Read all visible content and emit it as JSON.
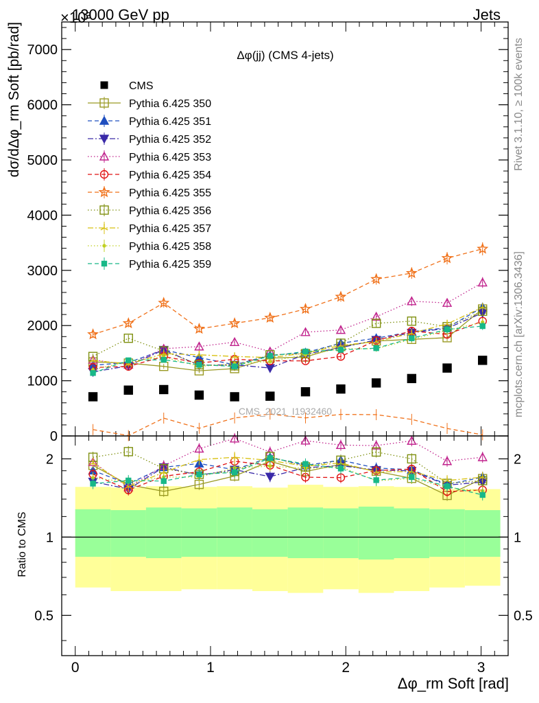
{
  "header": {
    "left": "13000 GeV pp",
    "right": "Jets",
    "exponent": "×10³"
  },
  "side_labels": {
    "rivet": "Rivet 3.1.10, ≥ 100k events",
    "mcplots": "mcplots.cern.ch [arXiv:1306.3436]"
  },
  "chart_data": [
    {
      "type": "scatter",
      "title": "Δφ(jj) (CMS 4-jets)",
      "watermark": "CMS_2021_I1932460",
      "ylabel": "dσ/dΔφ_rm Soft [pb/rad]",
      "xlabel": "Δφ_rm Soft [rad]",
      "xlim": [
        -0.1,
        3.2
      ],
      "ylim": [
        0,
        7500
      ],
      "y_ticks": [
        0,
        1000,
        2000,
        3000,
        4000,
        5000,
        6000,
        7000
      ],
      "x": [
        0.131,
        0.393,
        0.654,
        0.916,
        1.178,
        1.44,
        1.702,
        1.963,
        2.225,
        2.487,
        2.749,
        3.011
      ],
      "legend_position": "top-left",
      "series": [
        {
          "name": "CMS",
          "color": "#000000",
          "marker": "square-filled",
          "line": "none",
          "values": [
            710,
            830,
            840,
            740,
            710,
            720,
            800,
            850,
            960,
            1040,
            1230,
            1370
          ]
        },
        {
          "name": "Pythia 6.425 350",
          "color": "#999922",
          "marker": "square-open",
          "line": "solid",
          "values": [
            1340,
            1320,
            1260,
            1180,
            1220,
            1410,
            1430,
            1620,
            1720,
            1750,
            1780,
            2300
          ]
        },
        {
          "name": "Pythia 6.425 351",
          "color": "#1f4fbf",
          "marker": "triangle-up-filled",
          "line": "dashed",
          "values": [
            1280,
            1330,
            1560,
            1420,
            1290,
            1460,
            1510,
            1680,
            1770,
            1890,
            1960,
            2330
          ]
        },
        {
          "name": "Pythia 6.425 352",
          "color": "#3a2aa8",
          "marker": "triangle-down-filled",
          "line": "dashdot",
          "values": [
            1160,
            1270,
            1560,
            1280,
            1290,
            1230,
            1480,
            1600,
            1740,
            1870,
            1950,
            2230
          ]
        },
        {
          "name": "Pythia 6.425 353",
          "color": "#c0218c",
          "marker": "triangle-up-open",
          "line": "dotted",
          "values": [
            1380,
            1290,
            1580,
            1620,
            1700,
            1530,
            1880,
            1920,
            2160,
            2440,
            2410,
            2780
          ]
        },
        {
          "name": "Pythia 6.425 354",
          "color": "#e01010",
          "marker": "circle-open",
          "line": "dashed",
          "values": [
            1240,
            1260,
            1440,
            1320,
            1390,
            1360,
            1360,
            1440,
            1730,
            1900,
            1840,
            2080
          ]
        },
        {
          "name": "Pythia 6.425 355",
          "color": "#f07018",
          "marker": "star-open",
          "line": "dashed",
          "values": [
            1840,
            2040,
            2410,
            1940,
            2040,
            2140,
            2300,
            2520,
            2840,
            2950,
            3220,
            3390
          ]
        },
        {
          "name": "Pythia 6.425 356",
          "color": "#7f9010",
          "marker": "square-open",
          "line": "dotted",
          "values": [
            1440,
            1770,
            1540,
            1290,
            1270,
            1470,
            1490,
            1680,
            2040,
            2080,
            1980,
            2260
          ]
        },
        {
          "name": "Pythia 6.425 357",
          "color": "#d8c010",
          "marker": "tri-star",
          "line": "dashdot",
          "values": [
            1370,
            1300,
            1490,
            1470,
            1440,
            1420,
            1500,
            1640,
            1710,
            1860,
            2030,
            2330
          ]
        },
        {
          "name": "Pythia 6.425 358",
          "color": "#c0d020",
          "marker": "dot",
          "line": "dotted",
          "values": [
            1200,
            1350,
            1430,
            1260,
            1310,
            1350,
            1470,
            1580,
            1580,
            1750,
            1910,
            2060
          ]
        },
        {
          "name": "Pythia 6.425 359",
          "color": "#18b888",
          "marker": "square-small",
          "line": "dashed",
          "values": [
            1140,
            1370,
            1380,
            1290,
            1260,
            1450,
            1530,
            1560,
            1590,
            1770,
            1930,
            1990
          ]
        }
      ]
    },
    {
      "type": "scatter",
      "ylabel": "Ratio to CMS",
      "scale": "log",
      "ylim": [
        0.35,
        2.45
      ],
      "y_ticks": [
        0.5,
        1,
        2
      ],
      "y_tick_labels": [
        "0.5",
        "1",
        "2"
      ],
      "x_ticks": [
        0,
        1,
        2,
        3
      ],
      "x_tick_labels": [
        "0",
        "1",
        "2",
        "3"
      ],
      "reference_line": 1,
      "bands": {
        "green_color": "#99ff99",
        "yellow_color": "#ffff99",
        "green_up": [
          1.28,
          1.27,
          1.3,
          1.29,
          1.3,
          1.28,
          1.3,
          1.29,
          1.31,
          1.29,
          1.28,
          1.27
        ],
        "green_down": [
          0.84,
          0.84,
          0.83,
          0.84,
          0.84,
          0.84,
          0.83,
          0.83,
          0.82,
          0.83,
          0.84,
          0.84
        ],
        "yellow_up": [
          1.56,
          1.55,
          1.57,
          1.56,
          1.57,
          1.55,
          1.59,
          1.56,
          1.57,
          1.56,
          1.53,
          1.53
        ],
        "yellow_down": [
          0.64,
          0.62,
          0.62,
          0.63,
          0.63,
          0.62,
          0.61,
          0.63,
          0.61,
          0.62,
          0.64,
          0.65
        ]
      }
    }
  ]
}
